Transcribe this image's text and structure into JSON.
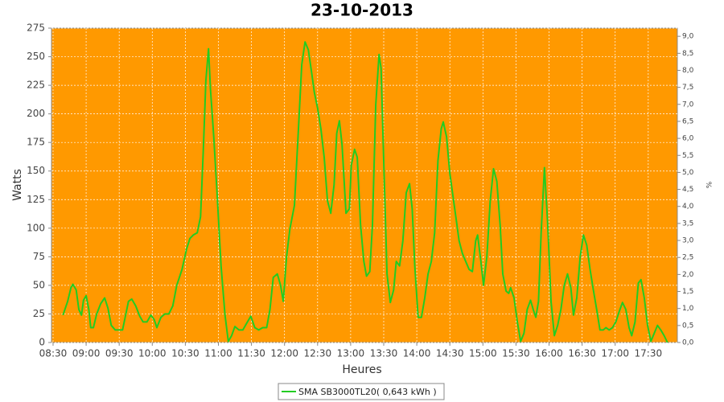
{
  "chart_data": {
    "type": "line",
    "title": "23-10-2013",
    "x_label": "Heures",
    "y_label": "Watts",
    "y2_label": "%",
    "x": [
      8.65,
      8.72,
      8.77,
      8.8,
      8.85,
      8.89,
      8.93,
      8.96,
      9.0,
      9.04,
      9.07,
      9.11,
      9.16,
      9.22,
      9.28,
      9.33,
      9.38,
      9.44,
      9.5,
      9.55,
      9.59,
      9.64,
      9.69,
      9.75,
      9.81,
      9.86,
      9.92,
      9.98,
      10.03,
      10.07,
      10.13,
      10.19,
      10.25,
      10.31,
      10.37,
      10.45,
      10.52,
      10.57,
      10.62,
      10.68,
      10.73,
      10.77,
      10.81,
      10.85,
      10.88,
      10.93,
      10.98,
      11.04,
      11.1,
      11.15,
      11.2,
      11.25,
      11.31,
      11.37,
      11.43,
      11.49,
      11.55,
      11.61,
      11.67,
      11.73,
      11.78,
      11.83,
      11.89,
      11.94,
      11.98,
      12.03,
      12.08,
      12.15,
      12.21,
      12.26,
      12.31,
      12.36,
      12.41,
      12.45,
      12.5,
      12.55,
      12.6,
      12.65,
      12.7,
      12.75,
      12.79,
      12.83,
      12.87,
      12.93,
      12.98,
      13.01,
      13.06,
      13.1,
      13.15,
      13.2,
      13.24,
      13.29,
      13.33,
      13.38,
      13.43,
      13.46,
      13.5,
      13.55,
      13.6,
      13.65,
      13.69,
      13.74,
      13.79,
      13.84,
      13.89,
      13.93,
      13.97,
      14.02,
      14.07,
      14.12,
      14.17,
      14.22,
      14.27,
      14.32,
      14.37,
      14.4,
      14.45,
      14.5,
      14.55,
      14.6,
      14.64,
      14.69,
      14.74,
      14.79,
      14.84,
      14.89,
      14.92,
      14.97,
      15.01,
      15.06,
      15.11,
      15.16,
      15.21,
      15.26,
      15.3,
      15.35,
      15.39,
      15.42,
      15.47,
      15.52,
      15.57,
      15.62,
      15.67,
      15.72,
      15.76,
      15.8,
      15.84,
      15.88,
      15.93,
      15.98,
      16.03,
      16.08,
      16.13,
      16.18,
      16.23,
      16.28,
      16.33,
      16.37,
      16.42,
      16.47,
      16.52,
      16.57,
      16.62,
      16.67,
      16.72,
      16.77,
      16.82,
      16.86,
      16.91,
      16.96,
      17.01,
      17.06,
      17.11,
      17.16,
      17.21,
      17.25,
      17.3,
      17.35,
      17.39,
      17.44,
      17.49,
      17.54,
      17.59,
      17.64,
      17.69,
      17.74,
      17.79
    ],
    "series": [
      {
        "name": "SMA SB3000TL20( 0,643 kWh )",
        "color": "#22cc22",
        "values": [
          24,
          36,
          48,
          51,
          46,
          29,
          24,
          37,
          41,
          29,
          13,
          13,
          25,
          34,
          39,
          30,
          15,
          11,
          11,
          11,
          22,
          36,
          38,
          32,
          23,
          18,
          18,
          24,
          20,
          13,
          22,
          25,
          25,
          32,
          50,
          64,
          82,
          91,
          94,
          96,
          110,
          166,
          229,
          257,
          222,
          180,
          131,
          67,
          24,
          1,
          6,
          14,
          11,
          11,
          17,
          23,
          13,
          11,
          13,
          13,
          29,
          57,
          60,
          50,
          36,
          75,
          99,
          120,
          187,
          243,
          263,
          256,
          236,
          219,
          205,
          187,
          162,
          124,
          113,
          138,
          183,
          194,
          173,
          113,
          117,
          155,
          169,
          162,
          103,
          71,
          58,
          62,
          103,
          208,
          252,
          240,
          159,
          60,
          35,
          46,
          71,
          67,
          89,
          131,
          139,
          117,
          67,
          22,
          22,
          39,
          60,
          71,
          96,
          159,
          187,
          193,
          180,
          148,
          127,
          106,
          89,
          78,
          71,
          64,
          62,
          89,
          94,
          71,
          50,
          75,
          124,
          152,
          141,
          103,
          60,
          45,
          43,
          48,
          39,
          18,
          1,
          8,
          29,
          37,
          29,
          22,
          36,
          96,
          153,
          103,
          36,
          6,
          15,
          29,
          50,
          60,
          48,
          24,
          39,
          75,
          94,
          85,
          64,
          46,
          29,
          11,
          11,
          13,
          11,
          13,
          18,
          27,
          35,
          29,
          13,
          6,
          18,
          52,
          55,
          39,
          15,
          1,
          8,
          15,
          11,
          6,
          0
        ]
      }
    ],
    "xlim": [
      8.476,
      17.94
    ],
    "xticks": [
      {
        "value": 8.5,
        "label": "08:30"
      },
      {
        "value": 9,
        "label": "09:00"
      },
      {
        "value": 9.5,
        "label": "09:30"
      },
      {
        "value": 10,
        "label": "10:00"
      },
      {
        "value": 10.5,
        "label": "10:30"
      },
      {
        "value": 11,
        "label": "11:00"
      },
      {
        "value": 11.5,
        "label": "11:30"
      },
      {
        "value": 12,
        "label": "12:00"
      },
      {
        "value": 12.5,
        "label": "12:30"
      },
      {
        "value": 13,
        "label": "13:00"
      },
      {
        "value": 13.5,
        "label": "13:30"
      },
      {
        "value": 14,
        "label": "14:00"
      },
      {
        "value": 14.5,
        "label": "14:30"
      },
      {
        "value": 15,
        "label": "15:00"
      },
      {
        "value": 15.5,
        "label": "15:30"
      },
      {
        "value": 16,
        "label": "16:00"
      },
      {
        "value": 16.5,
        "label": "16:30"
      },
      {
        "value": 17,
        "label": "17:00"
      },
      {
        "value": 17.5,
        "label": "17:30"
      }
    ],
    "ylim": [
      0,
      275
    ],
    "yticks": [
      0,
      25,
      50,
      75,
      100,
      125,
      150,
      175,
      200,
      225,
      250,
      275
    ],
    "y2lim": [
      0,
      9.24
    ],
    "y2ticks": [
      {
        "value": 0,
        "label": "0,0"
      },
      {
        "value": 0.5,
        "label": "0,5"
      },
      {
        "value": 1,
        "label": "1,0"
      },
      {
        "value": 1.5,
        "label": "1,5"
      },
      {
        "value": 2,
        "label": "2,0"
      },
      {
        "value": 2.5,
        "label": "2,5"
      },
      {
        "value": 3,
        "label": "3,0"
      },
      {
        "value": 3.5,
        "label": "3,5"
      },
      {
        "value": 4,
        "label": "4,0"
      },
      {
        "value": 4.5,
        "label": "4,5"
      },
      {
        "value": 5,
        "label": "5,0"
      },
      {
        "value": 5.5,
        "label": "5,5"
      },
      {
        "value": 6,
        "label": "6,0"
      },
      {
        "value": 6.5,
        "label": "6,5"
      },
      {
        "value": 7,
        "label": "7,0"
      },
      {
        "value": 7.5,
        "label": "7,5"
      },
      {
        "value": 8,
        "label": "8,0"
      },
      {
        "value": 8.5,
        "label": "8,5"
      },
      {
        "value": 9,
        "label": "9,0"
      }
    ],
    "grid": true,
    "plot_color": "#ff9900",
    "legend": "bottom"
  }
}
